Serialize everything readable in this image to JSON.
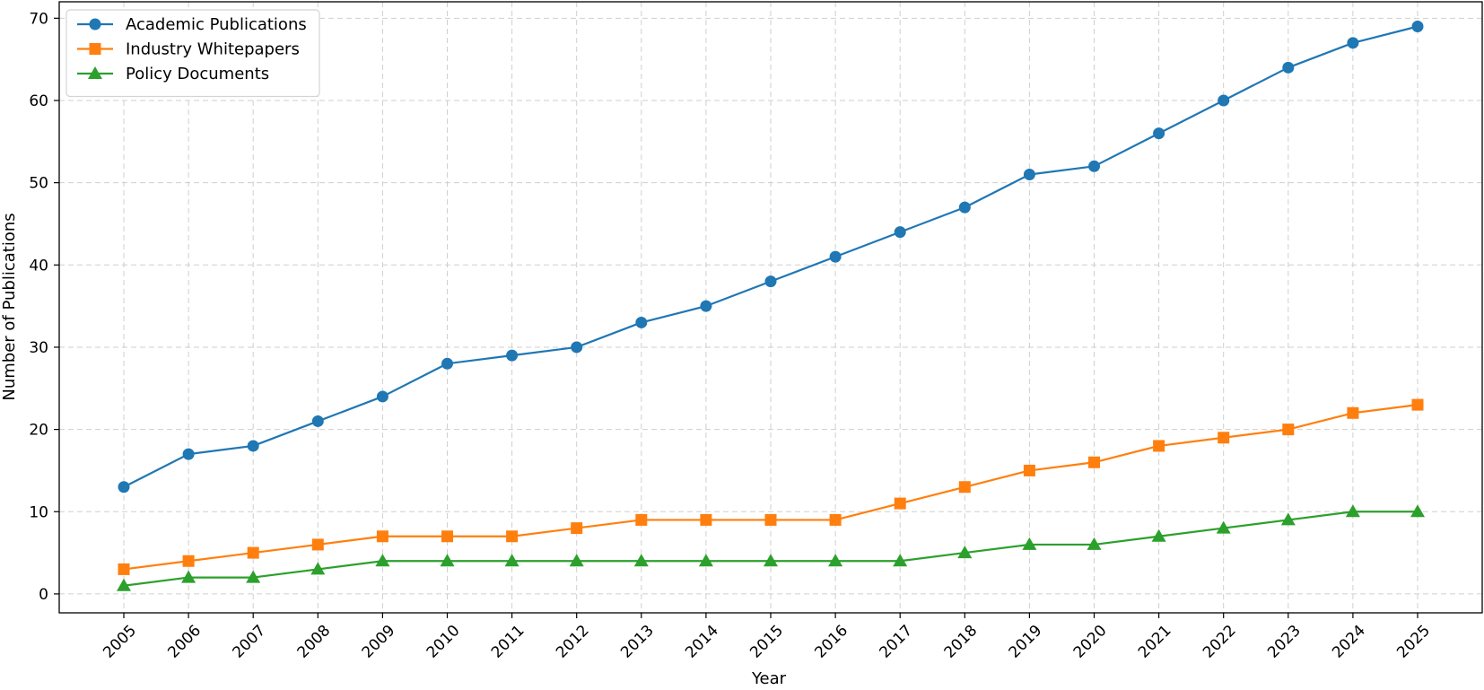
{
  "chart_data": {
    "type": "line",
    "title": "",
    "xlabel": "Year",
    "ylabel": "Number of Publications",
    "x": [
      "2005",
      "2006",
      "2007",
      "2008",
      "2009",
      "2010",
      "2011",
      "2012",
      "2013",
      "2014",
      "2015",
      "2016",
      "2017",
      "2018",
      "2019",
      "2020",
      "2021",
      "2022",
      "2023",
      "2024",
      "2025"
    ],
    "yticks": [
      "0",
      "10",
      "20",
      "30",
      "40",
      "50",
      "60",
      "70"
    ],
    "ylim": [
      -2.3,
      72
    ],
    "grid": true,
    "legend_position": "top-left",
    "series": [
      {
        "name": "Academic Publications",
        "color": "#1f77b4",
        "marker": "circle",
        "values": [
          13,
          17,
          18,
          21,
          24,
          28,
          29,
          30,
          33,
          35,
          38,
          41,
          44,
          47,
          51,
          52,
          56,
          60,
          64,
          67,
          69
        ]
      },
      {
        "name": "Industry Whitepapers",
        "color": "#ff7f0e",
        "marker": "square",
        "values": [
          3,
          4,
          5,
          6,
          7,
          7,
          7,
          8,
          9,
          9,
          9,
          9,
          11,
          13,
          15,
          16,
          18,
          19,
          20,
          22,
          23
        ]
      },
      {
        "name": "Policy Documents",
        "color": "#2ca02c",
        "marker": "triangle",
        "values": [
          1,
          2,
          2,
          3,
          4,
          4,
          4,
          4,
          4,
          4,
          4,
          4,
          4,
          5,
          6,
          6,
          7,
          8,
          9,
          10,
          10
        ]
      }
    ]
  }
}
